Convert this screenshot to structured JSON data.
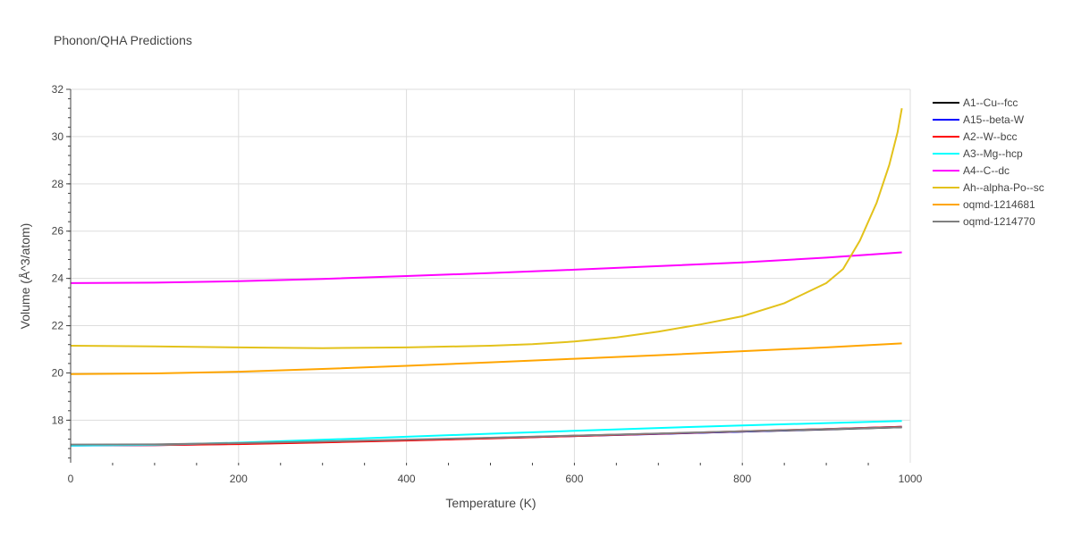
{
  "chart_data": {
    "type": "line",
    "title": "Phonon/QHA Predictions",
    "xlabel": "Temperature (K)",
    "ylabel": "Volume (Å^3/atom)",
    "xlim": [
      0,
      1000
    ],
    "ylim": [
      16.2,
      32
    ],
    "x_ticks": [
      0,
      200,
      400,
      600,
      800,
      1000
    ],
    "y_ticks": [
      18,
      20,
      22,
      24,
      26,
      28,
      30,
      32
    ],
    "grid": true,
    "legend_position": "right",
    "series": [
      {
        "name": "A1--Cu--fcc",
        "color": "#000000",
        "x": [
          0,
          100,
          200,
          300,
          400,
          500,
          600,
          700,
          800,
          900,
          990
        ],
        "y": [
          16.95,
          16.97,
          17.02,
          17.08,
          17.16,
          17.25,
          17.34,
          17.43,
          17.52,
          17.61,
          17.7
        ]
      },
      {
        "name": "A15--beta-W",
        "color": "#0000ff",
        "x": [
          0,
          100,
          200,
          300,
          400,
          500,
          600,
          700,
          800,
          900,
          990
        ],
        "y": [
          16.93,
          16.95,
          17.0,
          17.07,
          17.15,
          17.24,
          17.33,
          17.42,
          17.52,
          17.62,
          17.72
        ]
      },
      {
        "name": "A2--W--bcc",
        "color": "#ff0000",
        "x": [
          0,
          100,
          200,
          300,
          400,
          500,
          600,
          700,
          800,
          900,
          990
        ],
        "y": [
          16.94,
          16.95,
          16.99,
          17.06,
          17.14,
          17.23,
          17.33,
          17.43,
          17.53,
          17.63,
          17.72
        ]
      },
      {
        "name": "A3--Mg--hcp",
        "color": "#00ffff",
        "x": [
          0,
          100,
          200,
          300,
          400,
          500,
          600,
          700,
          800,
          900,
          990
        ],
        "y": [
          16.93,
          16.96,
          17.05,
          17.17,
          17.3,
          17.43,
          17.55,
          17.67,
          17.78,
          17.88,
          17.97
        ]
      },
      {
        "name": "A4--C--dc",
        "color": "#ff00ff",
        "x": [
          0,
          100,
          200,
          300,
          400,
          500,
          600,
          700,
          800,
          900,
          990
        ],
        "y": [
          23.8,
          23.82,
          23.88,
          23.98,
          24.1,
          24.23,
          24.37,
          24.52,
          24.68,
          24.88,
          25.1
        ]
      },
      {
        "name": "Ah--alpha-Po--sc",
        "color": "#e3c21b",
        "x": [
          0,
          100,
          200,
          300,
          400,
          500,
          550,
          600,
          650,
          700,
          750,
          800,
          850,
          900,
          920,
          940,
          960,
          975,
          985,
          990
        ],
        "y": [
          21.15,
          21.12,
          21.08,
          21.05,
          21.08,
          21.15,
          21.22,
          21.33,
          21.5,
          21.75,
          22.05,
          22.4,
          22.95,
          23.8,
          24.4,
          25.6,
          27.2,
          28.8,
          30.2,
          31.2
        ]
      },
      {
        "name": "oqmd-1214681",
        "color": "#ffa500",
        "x": [
          0,
          100,
          200,
          300,
          400,
          500,
          600,
          700,
          800,
          900,
          990
        ],
        "y": [
          19.95,
          19.98,
          20.05,
          20.17,
          20.3,
          20.45,
          20.6,
          20.75,
          20.92,
          21.08,
          21.25
        ]
      },
      {
        "name": "oqmd-1214770",
        "color": "#808080",
        "x": [
          0,
          100,
          200,
          300,
          400,
          500,
          600,
          700,
          800,
          900,
          990
        ],
        "y": [
          16.97,
          16.98,
          17.03,
          17.1,
          17.18,
          17.26,
          17.35,
          17.44,
          17.53,
          17.62,
          17.7
        ]
      }
    ]
  }
}
